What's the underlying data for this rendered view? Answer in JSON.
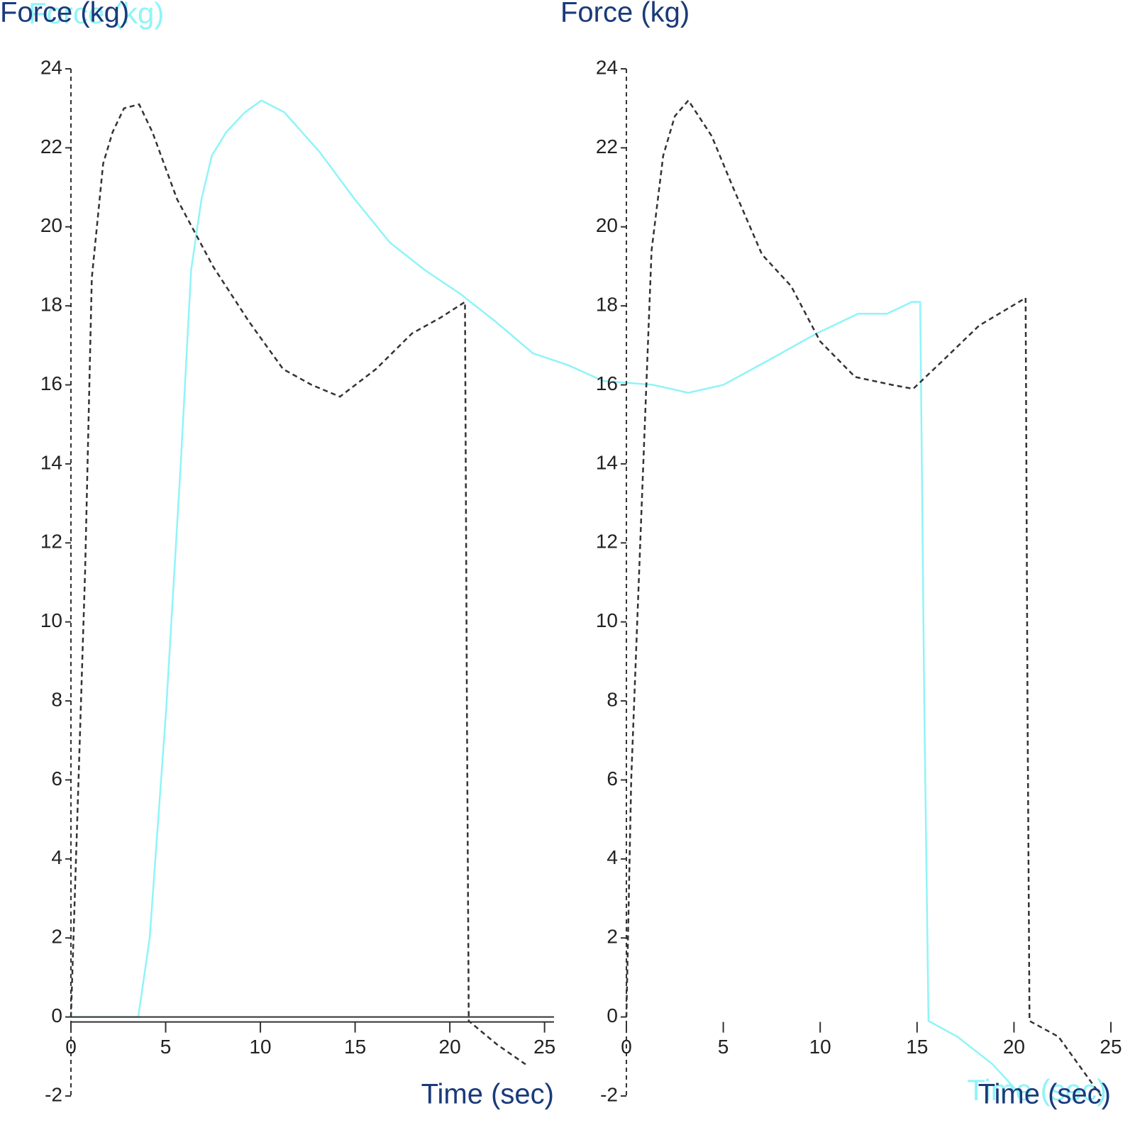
{
  "chart_data": [
    {
      "type": "line",
      "y_label": "Force (kg)",
      "x_label": "Time (sec)",
      "color": "#8ff4f8",
      "line_style": "solid",
      "xlim": [
        0,
        50
      ],
      "ylim": [
        -2,
        24
      ],
      "x": [
        0,
        3.25,
        3.8,
        4.6,
        5.3,
        5.8,
        6.3,
        6.8,
        7.5,
        8.4,
        9.2,
        10.3,
        12.0,
        13.7,
        15.4,
        17.1,
        18.8,
        20.5,
        22.3,
        24.0,
        25.7,
        28.1,
        29.8,
        31.5,
        33.6,
        36.0,
        38.0,
        39.4,
        40.6,
        41.0,
        41.2,
        41.4,
        42.8,
        44.5,
        45.9
      ],
      "values": [
        0,
        0,
        2.0,
        7.8,
        14.0,
        18.9,
        20.7,
        21.8,
        22.4,
        22.9,
        23.2,
        22.9,
        21.9,
        20.7,
        19.6,
        18.9,
        18.3,
        17.6,
        16.8,
        16.5,
        16.1,
        16.0,
        15.8,
        16.0,
        16.6,
        17.3,
        17.8,
        17.8,
        18.1,
        18.1,
        7.8,
        -0.1,
        -0.5,
        -1.2,
        -2.0
      ]
    },
    {
      "type": "line",
      "y_label": "Force (kg)",
      "x_label": "Time (sec)",
      "color": "#333333",
      "line_style": "dashed",
      "axis_line": true,
      "xlim": [
        0,
        25.5
      ],
      "ylim": [
        -2,
        24
      ],
      "xticks": [
        0,
        5,
        10,
        15,
        20,
        25
      ],
      "yticks": [
        -2,
        0,
        2,
        4,
        6,
        8,
        10,
        12,
        14,
        16,
        18,
        20,
        22,
        24
      ],
      "x": [
        0,
        0.4,
        0.75,
        1.1,
        1.7,
        2.2,
        2.8,
        3.6,
        4.3,
        5.6,
        7.5,
        9.4,
        11.2,
        12.7,
        14.2,
        16.1,
        18.0,
        19.5,
        20.8,
        20.9,
        21.0,
        22.5,
        24.0
      ],
      "values": [
        0,
        6,
        11.3,
        18.7,
        21.6,
        22.4,
        23.0,
        23.1,
        22.4,
        20.7,
        19.0,
        17.6,
        16.4,
        16.0,
        15.7,
        16.4,
        17.3,
        17.7,
        18.1,
        7.8,
        -0.1,
        -0.7,
        -1.2
      ]
    },
    {
      "type": "line",
      "y_label": "Force (kg)",
      "x_label": "Time (sec)",
      "color": "#333333",
      "line_style": "dashed",
      "axis_line": false,
      "xlim": [
        0,
        25
      ],
      "ylim": [
        -2,
        24
      ],
      "xticks": [
        0,
        5,
        10,
        15,
        20,
        25
      ],
      "yticks": [
        -2,
        0,
        2,
        4,
        6,
        8,
        10,
        12,
        14,
        16,
        18,
        20,
        22,
        24
      ],
      "x": [
        0,
        0.25,
        0.8,
        1.3,
        1.9,
        2.5,
        3.2,
        4.4,
        5.5,
        7.0,
        8.5,
        10.0,
        11.8,
        13.7,
        14.8,
        16.3,
        18.2,
        20.6,
        20.7,
        20.8,
        22.3,
        24.5
      ],
      "values": [
        0,
        6,
        13.1,
        19.4,
        21.8,
        22.8,
        23.2,
        22.3,
        21.0,
        19.3,
        18.5,
        17.1,
        16.2,
        16.0,
        15.9,
        16.6,
        17.5,
        18.2,
        7.8,
        -0.1,
        -0.5,
        -2.0
      ]
    }
  ]
}
